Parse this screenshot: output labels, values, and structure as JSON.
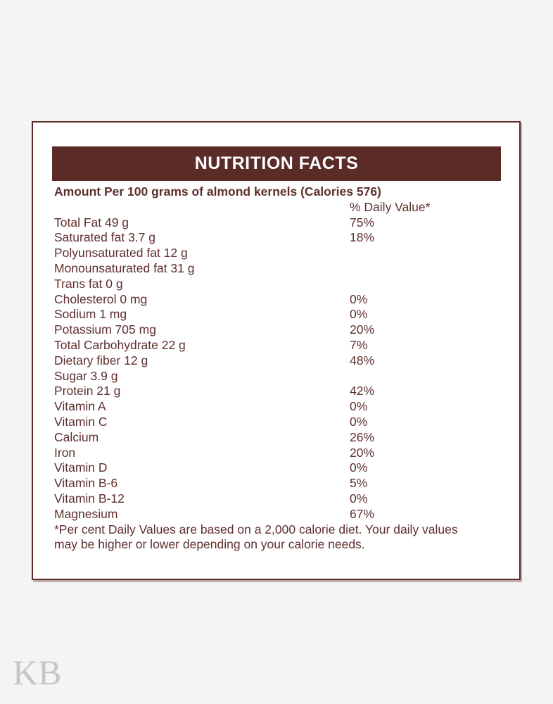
{
  "page": {
    "watermark": "KB",
    "colors": {
      "accent": "#5a2b27",
      "text": "#5e2f2e",
      "header_text": "#ffffff",
      "page_background": "#f4f4f5",
      "card_background": "#ffffff",
      "watermark_gray": "#c6c6c8"
    }
  },
  "label": {
    "title": "NUTRITION FACTS",
    "amount_line": "Amount Per 100 grams of almond kernels (Calories 576)",
    "daily_value_header": "% Daily Value*",
    "rows": [
      {
        "name": "Total Fat 49 g",
        "dv": "75%"
      },
      {
        "name": "Saturated fat 3.7 g",
        "dv": "18%"
      },
      {
        "name": "Polyunsaturated fat 12 g",
        "dv": ""
      },
      {
        "name": "Monounsaturated fat 31 g",
        "dv": ""
      },
      {
        "name": "Trans fat 0 g",
        "dv": ""
      },
      {
        "name": "Cholesterol 0 mg",
        "dv": "0%"
      },
      {
        "name": "Sodium 1 mg",
        "dv": "0%"
      },
      {
        "name": "Potassium 705 mg",
        "dv": "20%"
      },
      {
        "name": "Total Carbohydrate 22 g",
        "dv": "7%"
      },
      {
        "name": "Dietary fiber 12 g",
        "dv": "48%"
      },
      {
        "name": "Sugar 3.9 g",
        "dv": ""
      },
      {
        "name": "Protein 21 g",
        "dv": "42%"
      },
      {
        "name": "Vitamin A",
        "dv": "0%"
      },
      {
        "name": "Vitamin C",
        "dv": "0%"
      },
      {
        "name": "Calcium",
        "dv": "26%"
      },
      {
        "name": "Iron",
        "dv": "20%"
      },
      {
        "name": "Vitamin D",
        "dv": "0%"
      },
      {
        "name": "Vitamin B-6",
        "dv": "5%"
      },
      {
        "name": "Vitamin B-12",
        "dv": "0%"
      },
      {
        "name": "Magnesium",
        "dv": "67%"
      }
    ],
    "footnote": "*Per cent Daily Values are based on a 2,000 calorie diet. Your daily values may be higher or lower depending on your calorie needs."
  }
}
